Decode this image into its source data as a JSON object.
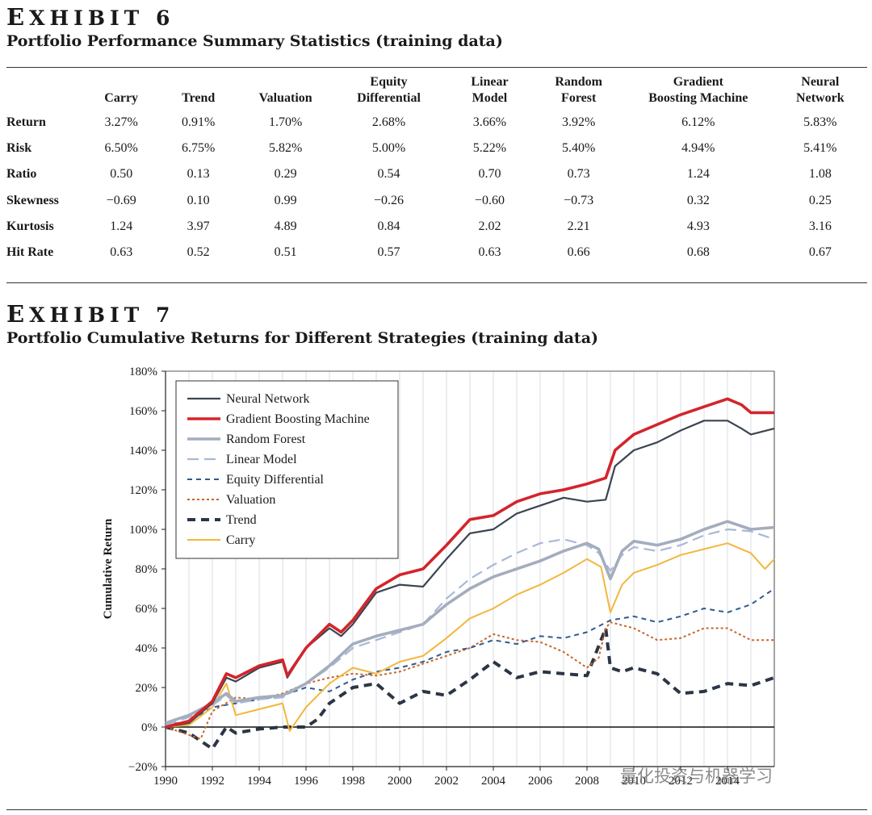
{
  "exhibit6": {
    "label_first": "E",
    "label_rest": "XHIBIT 6",
    "title": "Portfolio Performance Summary Statistics (training data)",
    "columns": [
      "Carry",
      "Trend",
      "Valuation",
      "Equity\nDifferential",
      "Linear\nModel",
      "Random\nForest",
      "Gradient\nBoosting Machine",
      "Neural\nNetwork"
    ],
    "rows": [
      {
        "label": "Return",
        "values": [
          "3.27%",
          "0.91%",
          "1.70%",
          "2.68%",
          "3.66%",
          "3.92%",
          "6.12%",
          "5.83%"
        ]
      },
      {
        "label": "Risk",
        "values": [
          "6.50%",
          "6.75%",
          "5.82%",
          "5.00%",
          "5.22%",
          "5.40%",
          "4.94%",
          "5.41%"
        ]
      },
      {
        "label": "Ratio",
        "values": [
          "0.50",
          "0.13",
          "0.29",
          "0.54",
          "0.70",
          "0.73",
          "1.24",
          "1.08"
        ]
      },
      {
        "label": "Skewness",
        "values": [
          "−0.69",
          "0.10",
          "0.99",
          "−0.26",
          "−0.60",
          "−0.73",
          "0.32",
          "0.25"
        ]
      },
      {
        "label": "Kurtosis",
        "values": [
          "1.24",
          "3.97",
          "4.89",
          "0.84",
          "2.02",
          "2.21",
          "4.93",
          "3.16"
        ]
      },
      {
        "label": "Hit Rate",
        "values": [
          "0.63",
          "0.52",
          "0.51",
          "0.57",
          "0.63",
          "0.66",
          "0.68",
          "0.67"
        ]
      }
    ]
  },
  "exhibit7": {
    "label_first": "E",
    "label_rest": "XHIBIT 7",
    "title": "Portfolio Cumulative Returns for Different Strategies (training data)"
  },
  "watermark": "量化投资与机器学习",
  "chart_data": {
    "type": "line",
    "title": "",
    "xlabel": "",
    "ylabel": "Cumulative Return",
    "xlim": [
      1990,
      2016
    ],
    "ylim": [
      -20,
      180
    ],
    "xticks": [
      "1990",
      "1992",
      "1994",
      "1996",
      "1998",
      "2000",
      "2002",
      "2004",
      "2006",
      "2008",
      "2010",
      "2012",
      "2014"
    ],
    "yticks": [
      "−20%",
      "0%",
      "20%",
      "40%",
      "60%",
      "80%",
      "100%",
      "120%",
      "140%",
      "160%",
      "180%"
    ],
    "grid": "vertical",
    "legend_position": "top-left",
    "series": [
      {
        "name": "Neural Network",
        "color": "#3b4452",
        "style": "solid-thin",
        "x": [
          1990,
          1991,
          1992,
          1992.6,
          1993,
          1994,
          1995,
          1995.2,
          1996,
          1997,
          1997.5,
          1998,
          1999,
          2000,
          2001,
          2002,
          2003,
          2004,
          2005,
          2006,
          2007,
          2008,
          2008.8,
          2009.2,
          2010,
          2011,
          2012,
          2013,
          2014,
          2014.6,
          2015,
          2016
        ],
        "y": [
          0,
          2,
          12,
          25,
          23,
          30,
          33,
          25,
          40,
          50,
          46,
          52,
          68,
          72,
          71,
          85,
          98,
          100,
          108,
          112,
          116,
          114,
          115,
          132,
          140,
          144,
          150,
          155,
          155,
          151,
          148,
          151
        ]
      },
      {
        "name": "Gradient Boosting Machine",
        "color": "#d4242b",
        "style": "solid-thick",
        "x": [
          1990,
          1991,
          1992,
          1992.6,
          1993,
          1994,
          1995,
          1995.2,
          1996,
          1997,
          1997.5,
          1998,
          1999,
          2000,
          2001,
          2002,
          2003,
          2004,
          2005,
          2006,
          2007,
          2008,
          2008.8,
          2009.2,
          2010,
          2011,
          2012,
          2013,
          2014,
          2014.6,
          2015,
          2016
        ],
        "y": [
          0,
          3,
          13,
          27,
          25,
          31,
          34,
          26,
          40,
          52,
          48,
          54,
          70,
          77,
          80,
          92,
          105,
          107,
          114,
          118,
          120,
          123,
          126,
          140,
          148,
          153,
          158,
          162,
          166,
          163,
          159,
          159
        ]
      },
      {
        "name": "Random Forest",
        "color": "#a4adbd",
        "style": "solid-thick",
        "x": [
          1990,
          1991,
          1992,
          1992.6,
          1993,
          1994,
          1995,
          1996,
          1997,
          1998,
          1999,
          2000,
          2001,
          2002,
          2003,
          2004,
          2005,
          2006,
          2007,
          2008,
          2008.5,
          2009,
          2009.5,
          2010,
          2011,
          2012,
          2013,
          2014,
          2015,
          2016
        ],
        "y": [
          2,
          6,
          12,
          17,
          13,
          15,
          16,
          22,
          31,
          42,
          46,
          49,
          52,
          62,
          70,
          76,
          80,
          84,
          89,
          93,
          90,
          75,
          89,
          94,
          92,
          95,
          100,
          104,
          100,
          101
        ]
      },
      {
        "name": "Linear Model",
        "color": "#a9b8d6",
        "style": "long-dash",
        "x": [
          1990,
          1991,
          1992,
          1992.6,
          1993,
          1994,
          1995,
          1996,
          1997,
          1998,
          1999,
          2000,
          2001,
          2002,
          2003,
          2004,
          2005,
          2006,
          2007,
          2008,
          2008.5,
          2009,
          2009.5,
          2010,
          2011,
          2012,
          2013,
          2014,
          2015,
          2016
        ],
        "y": [
          1,
          5,
          11,
          16,
          12,
          14,
          15,
          22,
          30,
          40,
          44,
          48,
          52,
          65,
          75,
          82,
          88,
          93,
          95,
          92,
          88,
          79,
          87,
          91,
          89,
          92,
          97,
          100,
          99,
          95
        ]
      },
      {
        "name": "Equity Differential",
        "color": "#2f5a90",
        "style": "short-dash",
        "x": [
          1990,
          1991,
          1992,
          1993,
          1994,
          1995,
          1996,
          1997,
          1998,
          1999,
          2000,
          2001,
          2002,
          2003,
          2004,
          2005,
          2006,
          2007,
          2008,
          2009,
          2010,
          2011,
          2012,
          2013,
          2014,
          2015,
          2016
        ],
        "y": [
          1,
          3,
          10,
          12,
          14,
          16,
          20,
          18,
          24,
          28,
          30,
          33,
          38,
          40,
          44,
          42,
          46,
          45,
          48,
          54,
          56,
          53,
          56,
          60,
          58,
          62,
          70
        ]
      },
      {
        "name": "Valuation",
        "color": "#c8652a",
        "style": "dot",
        "x": [
          1990,
          1991,
          1991.5,
          1992,
          1993,
          1994,
          1995,
          1996,
          1997,
          1998,
          1999,
          2000,
          2001,
          2002,
          2003,
          2004,
          2005,
          2006,
          2007,
          2008,
          2008.5,
          2008.8,
          2009,
          2010,
          2011,
          2012,
          2013,
          2014,
          2015,
          2016
        ],
        "y": [
          0,
          -4,
          -6,
          8,
          15,
          14,
          17,
          22,
          25,
          27,
          26,
          28,
          32,
          36,
          40,
          47,
          44,
          43,
          38,
          30,
          35,
          50,
          53,
          50,
          44,
          45,
          50,
          50,
          44,
          44
        ]
      },
      {
        "name": "Trend",
        "color": "#2b3545",
        "style": "thick-dash",
        "x": [
          1990,
          1991,
          1992,
          1992.6,
          1993,
          1994,
          1995,
          1996,
          1996.5,
          1997,
          1998,
          1999,
          2000,
          2001,
          2002,
          2003,
          2004,
          2005,
          2006,
          2007,
          2008,
          2008.8,
          2009,
          2009.5,
          2010,
          2011,
          2012,
          2013,
          2014,
          2015,
          2016
        ],
        "y": [
          0,
          -3,
          -11,
          0,
          -3,
          -1,
          0,
          0,
          4,
          12,
          20,
          22,
          12,
          18,
          16,
          24,
          33,
          25,
          28,
          27,
          26,
          50,
          30,
          28,
          30,
          27,
          17,
          18,
          22,
          21,
          25
        ]
      },
      {
        "name": "Carry",
        "color": "#f2b73c",
        "style": "solid",
        "x": [
          1990,
          1991,
          1992,
          1992.6,
          1993,
          1994,
          1995,
          1995.3,
          1996,
          1997,
          1998,
          1999,
          2000,
          2001,
          2002,
          2003,
          2004,
          2005,
          2006,
          2007,
          2008,
          2008.6,
          2009,
          2009.5,
          2010,
          2011,
          2012,
          2013,
          2014,
          2015,
          2015.6,
          2016
        ],
        "y": [
          0,
          1,
          10,
          22,
          6,
          9,
          12,
          -2,
          10,
          22,
          30,
          27,
          33,
          36,
          45,
          55,
          60,
          67,
          72,
          78,
          85,
          81,
          58,
          72,
          78,
          82,
          87,
          90,
          93,
          88,
          80,
          85
        ]
      }
    ]
  }
}
